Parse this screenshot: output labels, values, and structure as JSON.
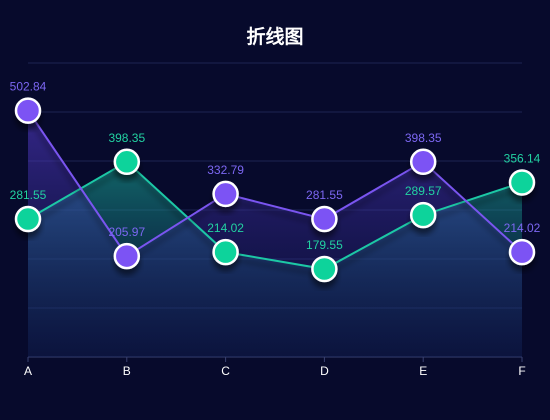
{
  "chart_data": {
    "type": "line",
    "title": "折线图",
    "categories": [
      "A",
      "B",
      "C",
      "D",
      "E",
      "F"
    ],
    "ylim": [
      0,
      600
    ],
    "grid": true,
    "series": [
      {
        "values": [
          281.55,
          398.35,
          214.02,
          179.55,
          289.57,
          356.14
        ],
        "line_color": "#1ec8a5",
        "marker_color": "#0bd39b",
        "label_color": "#22d2a2"
      },
      {
        "values": [
          502.84,
          205.97,
          332.79,
          281.55,
          398.35,
          214.02
        ],
        "line_color": "#7a55f0",
        "marker_color": "#7b52f4",
        "label_color": "#7c67f2"
      }
    ]
  },
  "colors": {
    "background": "#070a2c",
    "grid": "#1d2452",
    "axis": "#3a4170",
    "marker_stroke": "#ffffff"
  }
}
